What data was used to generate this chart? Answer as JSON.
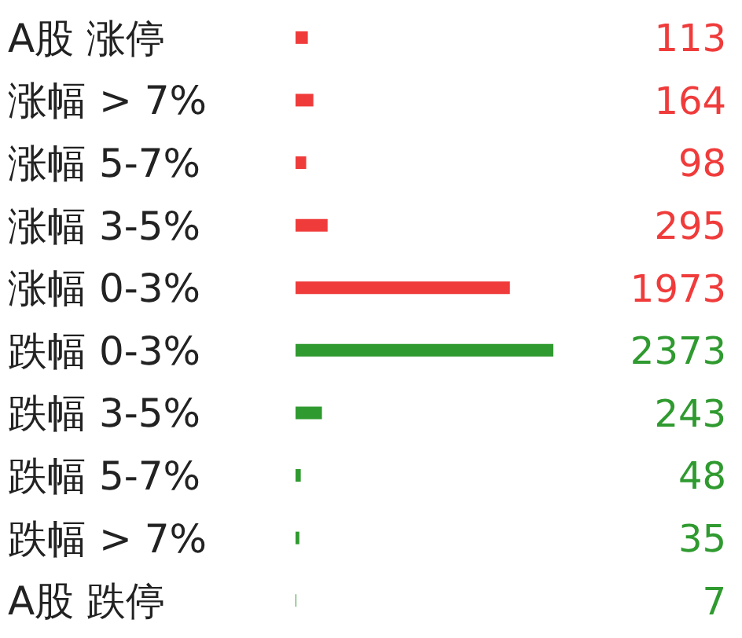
{
  "chart_data": {
    "type": "bar",
    "orientation": "horizontal",
    "categories": [
      "A股 涨停",
      "涨幅 > 7%",
      "涨幅 5-7%",
      "涨幅 3-5%",
      "涨幅 0-3%",
      "跌幅 0-3%",
      "跌幅 3-5%",
      "跌幅 5-7%",
      "跌幅 > 7%",
      "A股 跌停"
    ],
    "values": [
      113,
      164,
      98,
      295,
      1973,
      2373,
      243,
      48,
      35,
      7
    ],
    "colors": [
      "#f03b3b",
      "#f03b3b",
      "#f03b3b",
      "#f03b3b",
      "#f03b3b",
      "#2f9a2f",
      "#2f9a2f",
      "#2f9a2f",
      "#2f9a2f",
      "#2f9a2f"
    ],
    "data_labels": true
  }
}
